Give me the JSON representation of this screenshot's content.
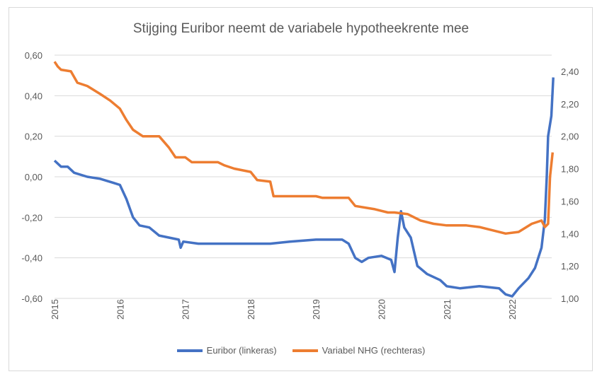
{
  "chart_data": {
    "type": "line",
    "title": "Stijging Euribor neemt de variabele hypotheekrente mee",
    "xlabel": "",
    "ylabel": "",
    "x_ticks": [
      "2015",
      "2016",
      "2017",
      "2018",
      "2019",
      "2020",
      "2021",
      "2022"
    ],
    "xlim": [
      2015,
      2022.65
    ],
    "y_left": {
      "ticks": [
        "-0,60",
        "-0,40",
        "-0,20",
        "0,00",
        "0,20",
        "0,40",
        "0,60"
      ],
      "ylim": [
        -0.6,
        0.6
      ]
    },
    "y_right": {
      "ticks": [
        "1,00",
        "1,20",
        "1,40",
        "1,60",
        "1,80",
        "2,00",
        "2,20",
        "2,40"
      ],
      "ylim": [
        1.0,
        2.5
      ]
    },
    "grid": true,
    "legend": "bottom",
    "series": [
      {
        "name": "Euribor (linkeras)",
        "axis": "left",
        "color": "#4472c4",
        "x": [
          2015.0,
          2015.1,
          2015.2,
          2015.3,
          2015.5,
          2015.7,
          2015.9,
          2016.0,
          2016.1,
          2016.2,
          2016.3,
          2016.45,
          2016.6,
          2016.75,
          2016.9,
          2016.93,
          2016.97,
          2017.2,
          2017.6,
          2018.0,
          2018.3,
          2018.6,
          2019.0,
          2019.4,
          2019.5,
          2019.6,
          2019.7,
          2019.8,
          2020.0,
          2020.15,
          2020.2,
          2020.25,
          2020.3,
          2020.35,
          2020.45,
          2020.55,
          2020.7,
          2020.9,
          2021.0,
          2021.2,
          2021.5,
          2021.8,
          2021.9,
          2022.0,
          2022.1,
          2022.25,
          2022.35,
          2022.45,
          2022.5,
          2022.53,
          2022.55,
          2022.6,
          2022.63
        ],
        "y": [
          0.08,
          0.05,
          0.05,
          0.02,
          0.0,
          -0.01,
          -0.03,
          -0.04,
          -0.11,
          -0.2,
          -0.24,
          -0.25,
          -0.29,
          -0.3,
          -0.31,
          -0.35,
          -0.32,
          -0.33,
          -0.33,
          -0.33,
          -0.33,
          -0.32,
          -0.31,
          -0.31,
          -0.33,
          -0.4,
          -0.42,
          -0.4,
          -0.39,
          -0.41,
          -0.47,
          -0.3,
          -0.17,
          -0.25,
          -0.3,
          -0.44,
          -0.48,
          -0.51,
          -0.54,
          -0.55,
          -0.54,
          -0.55,
          -0.58,
          -0.59,
          -0.55,
          -0.5,
          -0.45,
          -0.35,
          -0.21,
          0.0,
          0.2,
          0.3,
          0.49
        ]
      },
      {
        "name": "Variabel NHG (rechteras)",
        "axis": "right",
        "color": "#ed7d31",
        "x": [
          2015.0,
          2015.05,
          2015.1,
          2015.25,
          2015.35,
          2015.5,
          2015.7,
          2015.85,
          2016.0,
          2016.1,
          2016.2,
          2016.35,
          2016.6,
          2016.75,
          2016.85,
          2017.0,
          2017.1,
          2017.5,
          2017.6,
          2017.75,
          2018.0,
          2018.1,
          2018.3,
          2018.35,
          2019.0,
          2019.1,
          2019.5,
          2019.6,
          2019.9,
          2020.1,
          2020.2,
          2020.4,
          2020.6,
          2020.8,
          2021.0,
          2021.3,
          2021.5,
          2021.7,
          2021.9,
          2022.1,
          2022.3,
          2022.45,
          2022.5,
          2022.55,
          2022.58,
          2022.62
        ],
        "y": [
          2.46,
          2.43,
          2.41,
          2.4,
          2.33,
          2.31,
          2.26,
          2.22,
          2.17,
          2.1,
          2.04,
          2.0,
          2.0,
          1.93,
          1.87,
          1.87,
          1.84,
          1.84,
          1.82,
          1.8,
          1.78,
          1.73,
          1.72,
          1.63,
          1.63,
          1.62,
          1.62,
          1.57,
          1.55,
          1.53,
          1.53,
          1.52,
          1.48,
          1.46,
          1.45,
          1.45,
          1.44,
          1.42,
          1.4,
          1.41,
          1.46,
          1.48,
          1.44,
          1.46,
          1.75,
          1.9
        ]
      }
    ]
  }
}
